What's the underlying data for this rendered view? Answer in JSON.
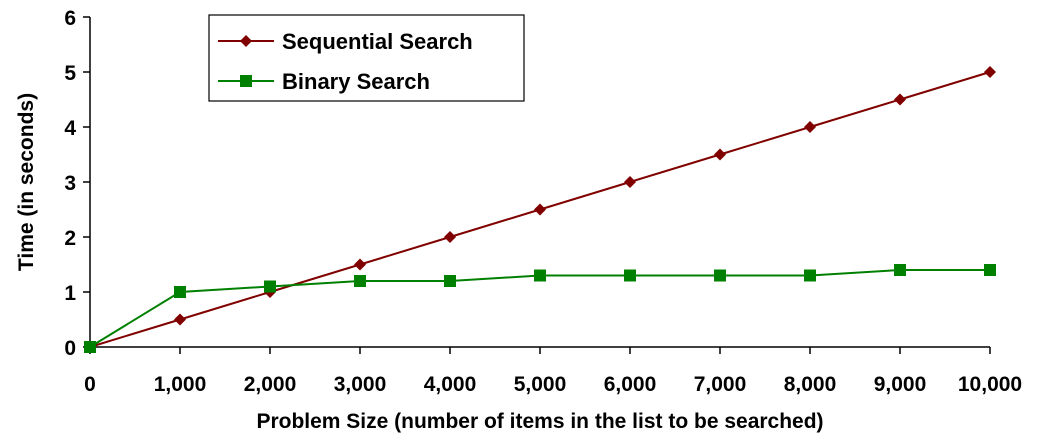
{
  "chart_data": {
    "type": "line",
    "title": "",
    "xlabel": "Problem Size (number of items in the list to be searched)",
    "ylabel": "Time (in seconds)",
    "x": [
      0,
      1000,
      2000,
      3000,
      4000,
      5000,
      6000,
      7000,
      8000,
      9000,
      10000
    ],
    "xticks": [
      "0",
      "1,000",
      "2,000",
      "3,000",
      "4,000",
      "5,000",
      "6,000",
      "7,000",
      "8,000",
      "9,000",
      "10,000"
    ],
    "yticks": [
      "0",
      "1",
      "2",
      "3",
      "4",
      "5",
      "6"
    ],
    "xlim": [
      0,
      10000
    ],
    "ylim": [
      0,
      6
    ],
    "grid": false,
    "legend_position": "top-left",
    "series": [
      {
        "name": "Sequential Search",
        "color": "#800000",
        "marker": "diamond",
        "values": [
          0,
          0.5,
          1.0,
          1.5,
          2.0,
          2.5,
          3.0,
          3.5,
          4.0,
          4.5,
          5.0
        ]
      },
      {
        "name": "Binary Search",
        "color": "#008000",
        "marker": "square",
        "values": [
          0,
          1.0,
          1.1,
          1.2,
          1.2,
          1.3,
          1.3,
          1.3,
          1.3,
          1.4,
          1.4
        ]
      }
    ]
  }
}
